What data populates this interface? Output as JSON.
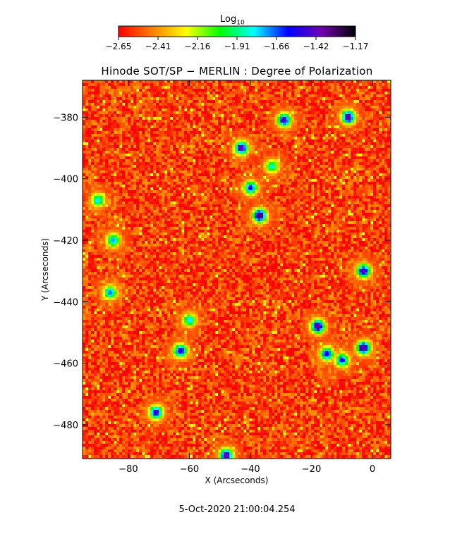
{
  "title": "Hinode SOT/SP − MERLIN : Degree of Polarization",
  "date": "5-Oct-2020 21:00:04.254",
  "colorbar": {
    "label_base": "Log",
    "label_sub": "10",
    "ticks": [
      "−2.65",
      "−2.41",
      "−2.16",
      "−1.91",
      "−1.66",
      "−1.42",
      "−1.17"
    ],
    "range": [
      -2.65,
      -1.17
    ],
    "colors": [
      "#ff0000",
      "#ff8000",
      "#ffff00",
      "#00ff00",
      "#00ffff",
      "#0000ff",
      "#7000b0",
      "#000000"
    ]
  },
  "chart_data": {
    "type": "heatmap",
    "title": "Hinode SOT/SP − MERLIN : Degree of Polarization",
    "xlabel": "X (Arcseconds)",
    "ylabel": "Y (Arcseconds)",
    "xlim": [
      -95,
      6
    ],
    "ylim": [
      -491,
      -368
    ],
    "xticks": [
      -80,
      -60,
      -40,
      -20,
      0
    ],
    "yticks": [
      -380,
      -400,
      -420,
      -440,
      -460,
      -480
    ],
    "colorscale": "log10 degree of polarization, red (low) to black (high)",
    "background_level": -2.55,
    "concentrations": [
      {
        "x": -29,
        "y": -381,
        "level": -1.45
      },
      {
        "x": -8,
        "y": -380,
        "level": -1.35
      },
      {
        "x": -43,
        "y": -390,
        "level": -1.4
      },
      {
        "x": -37,
        "y": -412,
        "level": -1.3
      },
      {
        "x": -40,
        "y": -403,
        "level": -1.6
      },
      {
        "x": -85,
        "y": -420,
        "level": -1.75
      },
      {
        "x": -86,
        "y": -437,
        "level": -1.7
      },
      {
        "x": -3,
        "y": -430,
        "level": -1.45
      },
      {
        "x": -18,
        "y": -448,
        "level": -1.35
      },
      {
        "x": -15,
        "y": -457,
        "level": -1.55
      },
      {
        "x": -3,
        "y": -455,
        "level": -1.35
      },
      {
        "x": -10,
        "y": -459,
        "level": -1.6
      },
      {
        "x": -63,
        "y": -456,
        "level": -1.5
      },
      {
        "x": -71,
        "y": -476,
        "level": -1.5
      },
      {
        "x": -48,
        "y": -490,
        "level": -1.4
      },
      {
        "x": -60,
        "y": -446,
        "level": -1.8
      },
      {
        "x": -90,
        "y": -407,
        "level": -1.8
      },
      {
        "x": -33,
        "y": -396,
        "level": -1.85
      }
    ]
  }
}
